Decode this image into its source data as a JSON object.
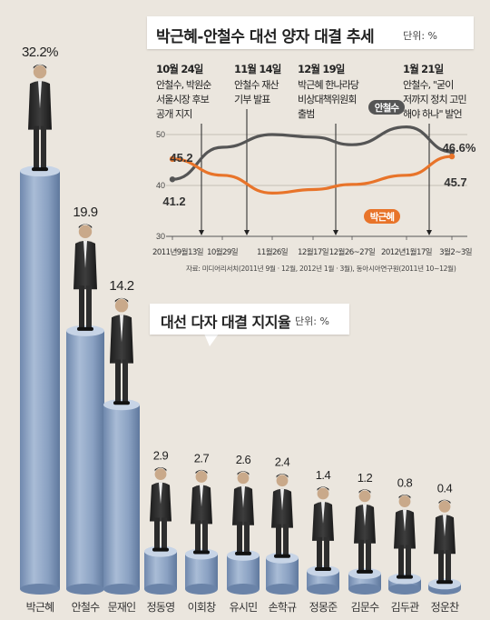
{
  "trend": {
    "title": "박근혜-안철수 대선 양자 대결 추세",
    "unit": "단위: %",
    "source": "자료: 미디어리서치(2011년 9월 · 12월, 2012년 1월 · 3월), 동아시아연구원(2011년 10~12월)",
    "line_label_ahn": "안철수",
    "line_label_park": "박근혜",
    "events": [
      {
        "date": "10월 24일",
        "lines": [
          "안철수, 박원순",
          "서울시장 후보",
          "공개 지지"
        ]
      },
      {
        "date": "11월 14일",
        "lines": [
          "안철수 재산",
          "기부 발표"
        ]
      },
      {
        "date": "12월 19일",
        "lines": [
          "박근혜 한나라당",
          "비상대책위원회",
          "출범"
        ]
      },
      {
        "date": "1월 21일",
        "lines": [
          "안철수, \"굳이",
          "저까지 정치 고민",
          "해야 하나\" 발언"
        ]
      }
    ]
  },
  "bars": {
    "title": "대선 다자 대결 지지율",
    "unit": "단위: %"
  },
  "chart_data": [
    {
      "type": "line",
      "x": [
        "2011년9월13일",
        "10월29일",
        "11월26일",
        "12월17일",
        "12월26~27일",
        "2012년1월17일",
        "3월2~3일"
      ],
      "series": [
        {
          "name": "안철수",
          "values": [
            41.2,
            47.5,
            50.0,
            49.5,
            48.0,
            51.5,
            46.6
          ],
          "color": "#555555"
        },
        {
          "name": "박근혜",
          "values": [
            45.2,
            42.0,
            38.5,
            39.2,
            40.2,
            42.0,
            45.7
          ],
          "color": "#e8742a"
        }
      ],
      "data_labels": {
        "안철수": {
          "first": "41.2",
          "last": "46.6%"
        },
        "박근혜": {
          "first": "45.2",
          "last": "45.7"
        }
      },
      "yticks": [
        "30",
        "40",
        "50"
      ],
      "ylim": [
        30,
        55
      ],
      "grid": true
    },
    {
      "type": "bar",
      "categories": [
        "박근혜",
        "안철수",
        "문재인",
        "정동영",
        "이회창",
        "유시민",
        "손학규",
        "정몽준",
        "김문수",
        "김두관",
        "정운찬"
      ],
      "values": [
        32.2,
        19.9,
        14.2,
        2.9,
        2.7,
        2.6,
        2.4,
        1.4,
        1.2,
        0.8,
        0.4
      ],
      "value_labels": [
        "32.2%",
        "19.9",
        "14.2",
        "2.9",
        "2.7",
        "2.6",
        "2.4",
        "1.4",
        "1.2",
        "0.8",
        "0.4"
      ],
      "color": "#8fa6c6"
    }
  ]
}
